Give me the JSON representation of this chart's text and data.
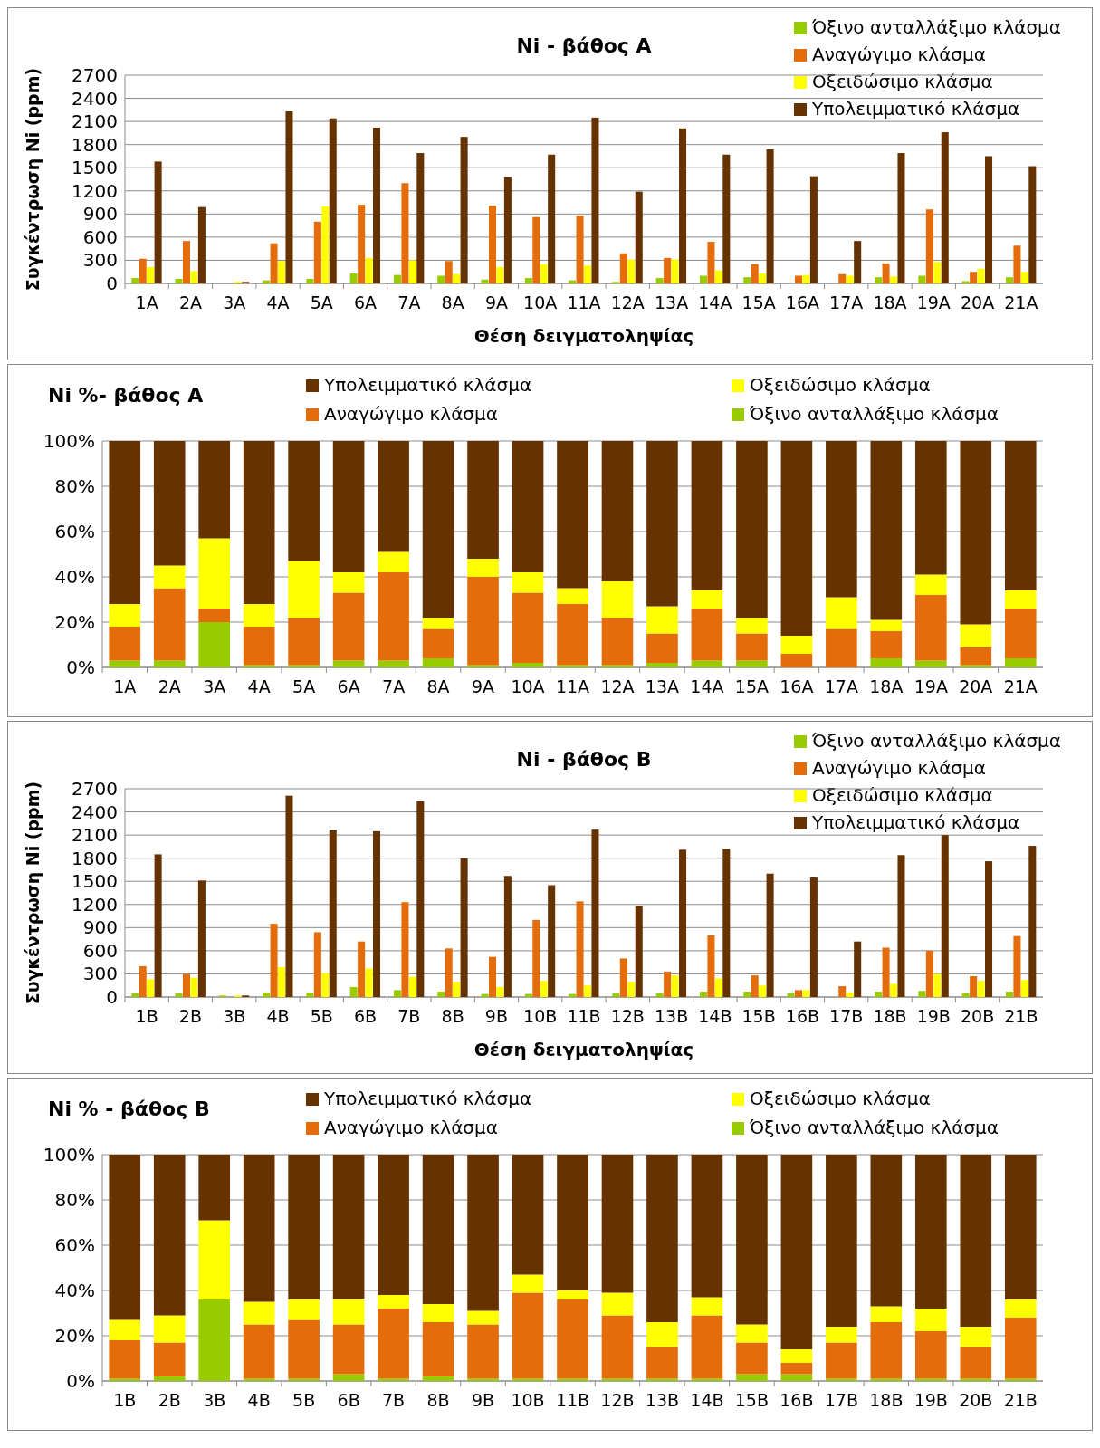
{
  "chart_data": [
    {
      "type": "bar",
      "title": "Ni - βάθος Α",
      "xlabel": "Θέση δειγματοληψίας",
      "ylabel": "Συγκέντρωση Ni (ppm)",
      "legend": "top right",
      "grid": "y",
      "categories": [
        "1A",
        "2A",
        "3A",
        "4A",
        "5A",
        "6A",
        "7A",
        "8A",
        "9A",
        "10A",
        "11A",
        "12A",
        "13A",
        "14A",
        "15A",
        "16A",
        "17A",
        "18A",
        "19A",
        "20A",
        "21A"
      ],
      "ylim": [
        0,
        2700
      ],
      "yticks": [
        0,
        300,
        600,
        900,
        1200,
        1500,
        1800,
        2100,
        2400,
        2700
      ],
      "series": [
        {
          "name": "Όξινο ανταλλάξιμο κλάσμα",
          "color": "#99cc00",
          "values": [
            70,
            60,
            0,
            40,
            60,
            130,
            110,
            100,
            50,
            70,
            40,
            20,
            70,
            100,
            80,
            null,
            null,
            80,
            100,
            30,
            80
          ]
        },
        {
          "name": "Αναγώγιμο κλάσμα",
          "color": "#e46c0a",
          "values": [
            320,
            550,
            null,
            520,
            800,
            1020,
            1300,
            290,
            1010,
            860,
            880,
            390,
            330,
            540,
            250,
            100,
            120,
            260,
            960,
            150,
            490
          ]
        },
        {
          "name": "Οξειδώσιμο κλάσμα",
          "color": "#ffff00",
          "values": [
            210,
            160,
            20,
            290,
            1000,
            330,
            300,
            120,
            210,
            250,
            230,
            310,
            310,
            170,
            130,
            110,
            100,
            90,
            280,
            190,
            150
          ]
        },
        {
          "name": "Υπολειμματικό κλάσμα",
          "color": "#663300",
          "values": [
            1580,
            990,
            20,
            2230,
            2140,
            2020,
            1690,
            1900,
            1380,
            1670,
            2150,
            1190,
            2010,
            1670,
            1740,
            1390,
            550,
            1690,
            1960,
            1650,
            1520
          ]
        }
      ]
    },
    {
      "type": "bar",
      "title": "Ni %- βάθος Α",
      "legend": "top",
      "grid": "y",
      "stacked": true,
      "categories": [
        "1A",
        "2A",
        "3A",
        "4A",
        "5A",
        "6A",
        "7A",
        "8A",
        "9A",
        "10A",
        "11A",
        "12A",
        "13A",
        "14A",
        "15A",
        "16A",
        "17A",
        "18A",
        "19A",
        "20A",
        "21A"
      ],
      "ylim": [
        0,
        100
      ],
      "yticks": [
        {
          "value": 0,
          "label": "0%"
        },
        {
          "value": 20,
          "label": "20%"
        },
        {
          "value": 40,
          "label": "40%"
        },
        {
          "value": 60,
          "label": "60%"
        },
        {
          "value": 80,
          "label": "80%"
        },
        {
          "value": 100,
          "label": "100%"
        }
      ],
      "series": [
        {
          "name": "Όξινο ανταλλάξιμο κλάσμα",
          "color": "#99cc00",
          "values": [
            3,
            3,
            20,
            1,
            1,
            3,
            3,
            4,
            1,
            2,
            1,
            1,
            2,
            3,
            3,
            0,
            0,
            4,
            3,
            1,
            4
          ]
        },
        {
          "name": "Αναγώγιμο κλάσμα",
          "color": "#e46c0a",
          "values": [
            15,
            32,
            6,
            17,
            21,
            30,
            39,
            13,
            39,
            31,
            27,
            21,
            13,
            23,
            12,
            6,
            17,
            12,
            29,
            8,
            22
          ]
        },
        {
          "name": "Οξειδώσιμο κλάσμα",
          "color": "#ffff00",
          "values": [
            10,
            10,
            31,
            10,
            25,
            9,
            9,
            5,
            8,
            9,
            7,
            16,
            12,
            8,
            7,
            8,
            14,
            5,
            9,
            10,
            8
          ]
        },
        {
          "name": "Υπολειμματικό κλάσμα",
          "color": "#663300",
          "values": [
            72,
            55,
            43,
            72,
            53,
            58,
            49,
            78,
            52,
            58,
            65,
            62,
            73,
            66,
            78,
            86,
            69,
            79,
            59,
            81,
            66
          ]
        }
      ]
    },
    {
      "type": "bar",
      "title": "Ni - βάθος Β",
      "xlabel": "Θέση δειγματοληψίας",
      "ylabel": "Συγκέντρωση Ni (ppm)",
      "legend": "top right",
      "grid": "y",
      "categories": [
        "1B",
        "2B",
        "3B",
        "4B",
        "5B",
        "6B",
        "7B",
        "8B",
        "9B",
        "10B",
        "11B",
        "12B",
        "13B",
        "14B",
        "15B",
        "16B",
        "17B",
        "18B",
        "19B",
        "20B",
        "21B"
      ],
      "ylim": [
        0,
        2700
      ],
      "yticks": [
        0,
        300,
        600,
        900,
        1200,
        1500,
        1800,
        2100,
        2400,
        2700
      ],
      "series": [
        {
          "name": "Όξινο ανταλλάξιμο κλάσμα",
          "color": "#99cc00",
          "values": [
            50,
            50,
            20,
            60,
            60,
            130,
            90,
            70,
            40,
            40,
            40,
            50,
            50,
            70,
            70,
            50,
            0,
            70,
            80,
            50,
            70
          ]
        },
        {
          "name": "Αναγώγιμο κλάσμα",
          "color": "#e46c0a",
          "values": [
            400,
            300,
            null,
            950,
            840,
            720,
            1230,
            630,
            520,
            1000,
            1240,
            500,
            330,
            800,
            280,
            90,
            140,
            640,
            600,
            270,
            790
          ]
        },
        {
          "name": "Οξειδώσιμο κλάσμα",
          "color": "#ffff00",
          "values": [
            230,
            250,
            20,
            390,
            310,
            370,
            260,
            200,
            130,
            210,
            150,
            200,
            280,
            240,
            150,
            90,
            60,
            170,
            300,
            210,
            220
          ]
        },
        {
          "name": "Υπολειμματικό κλάσμα",
          "color": "#663300",
          "values": [
            1850,
            1510,
            20,
            2610,
            2160,
            2150,
            2540,
            1800,
            1570,
            1450,
            2170,
            1180,
            1910,
            1920,
            1600,
            1550,
            720,
            1840,
            2100,
            1760,
            1960
          ]
        }
      ]
    },
    {
      "type": "bar",
      "title": "Ni % - βάθος Β",
      "legend": "top",
      "grid": "y",
      "stacked": true,
      "categories": [
        "1B",
        "2B",
        "3B",
        "4B",
        "5B",
        "6B",
        "7B",
        "8B",
        "9B",
        "10B",
        "11B",
        "12B",
        "13B",
        "14B",
        "15B",
        "16B",
        "17B",
        "18B",
        "19B",
        "20B",
        "21B"
      ],
      "ylim": [
        0,
        100
      ],
      "yticks": [
        {
          "value": 0,
          "label": "0%"
        },
        {
          "value": 20,
          "label": "20%"
        },
        {
          "value": 40,
          "label": "40%"
        },
        {
          "value": 60,
          "label": "60%"
        },
        {
          "value": 80,
          "label": "80%"
        },
        {
          "value": 100,
          "label": "100%"
        }
      ],
      "series": [
        {
          "name": "Όξινο ανταλλάξιμο κλάσμα",
          "color": "#99cc00",
          "values": [
            1,
            2,
            36,
            1,
            1,
            3,
            1,
            2,
            1,
            1,
            1,
            1,
            1,
            1,
            3,
            3,
            1,
            1,
            1,
            1,
            1
          ]
        },
        {
          "name": "Αναγώγιμο κλάσμα",
          "color": "#e46c0a",
          "values": [
            17,
            15,
            0,
            24,
            26,
            22,
            31,
            24,
            24,
            38,
            35,
            28,
            14,
            28,
            14,
            5,
            16,
            25,
            21,
            14,
            27
          ]
        },
        {
          "name": "Οξειδώσιμο κλάσμα",
          "color": "#ffff00",
          "values": [
            9,
            12,
            35,
            10,
            9,
            11,
            6,
            8,
            6,
            8,
            4,
            10,
            11,
            8,
            8,
            6,
            7,
            7,
            10,
            9,
            8
          ]
        },
        {
          "name": "Υπολειμματικό κλάσμα",
          "color": "#663300",
          "values": [
            73,
            71,
            29,
            65,
            64,
            64,
            62,
            66,
            69,
            53,
            60,
            61,
            74,
            63,
            75,
            86,
            76,
            67,
            68,
            76,
            64
          ]
        }
      ]
    }
  ]
}
